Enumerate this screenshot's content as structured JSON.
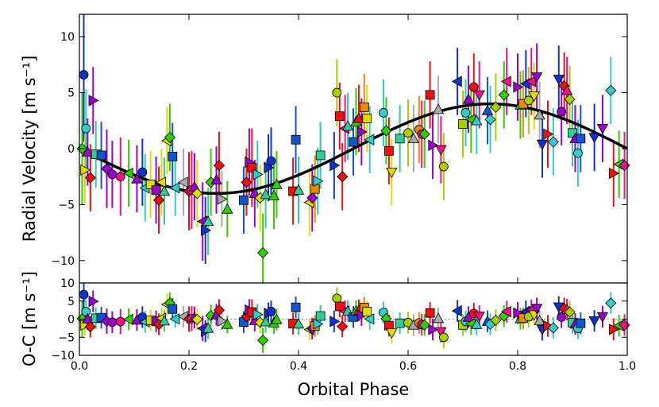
{
  "chart_data": [
    {
      "type": "scatter",
      "panel": "top",
      "title": "",
      "xlabel": "",
      "ylabel": "Radial Velocity [m s⁻¹]",
      "xlim": [
        0.0,
        1.0
      ],
      "ylim": [
        -12,
        12
      ],
      "yticks": [
        -10,
        -5,
        0,
        5,
        10
      ],
      "ytick_labels": [
        "−10",
        "−5",
        "0",
        "5",
        "10"
      ],
      "grid": false,
      "model_curve": {
        "name": "Keplerian fit",
        "type": "sinusoid",
        "amplitude": 4.0,
        "period_phase": 1.0,
        "zero_phase": 0.0,
        "form": "y = -K * sin(2*pi*phase)",
        "color": "#000000"
      },
      "points": [
        {
          "x": 0.005,
          "y": 0.0,
          "err": 5.0,
          "marker": "diamond",
          "color": "#33cc00"
        },
        {
          "x": 0.008,
          "y": 6.6,
          "err": 6.0,
          "marker": "circle",
          "color": "#1133cc"
        },
        {
          "x": 0.01,
          "y": -1.9,
          "err": 3.0,
          "marker": "right",
          "color": "#dddd00"
        },
        {
          "x": 0.012,
          "y": 1.8,
          "err": 3.5,
          "marker": "circle",
          "color": "#33cccc"
        },
        {
          "x": 0.015,
          "y": -0.3,
          "err": 3.0,
          "marker": "triangle",
          "color": "#9900cc"
        },
        {
          "x": 0.02,
          "y": -2.6,
          "err": 3.0,
          "marker": "diamond",
          "color": "#ee1111"
        },
        {
          "x": 0.025,
          "y": 4.3,
          "err": 3.0,
          "marker": "right",
          "color": "#9900cc"
        },
        {
          "x": 0.03,
          "y": -0.5,
          "err": 3.0,
          "marker": "square",
          "color": "#33cc99"
        },
        {
          "x": 0.04,
          "y": -0.6,
          "err": 3.0,
          "marker": "square",
          "color": "#1155cc"
        },
        {
          "x": 0.05,
          "y": -1.8,
          "err": 3.5,
          "marker": "diamond",
          "color": "#9900cc"
        },
        {
          "x": 0.06,
          "y": -2.3,
          "err": 3.0,
          "marker": "circle",
          "color": "#9900cc"
        },
        {
          "x": 0.075,
          "y": -2.5,
          "err": 3.5,
          "marker": "circle",
          "color": "#ee1188"
        },
        {
          "x": 0.09,
          "y": -2.2,
          "err": 3.0,
          "marker": "left",
          "color": "#33cc00"
        },
        {
          "x": 0.105,
          "y": -2.7,
          "err": 3.0,
          "marker": "triangle",
          "color": "#9900cc"
        },
        {
          "x": 0.115,
          "y": -2.1,
          "err": 3.0,
          "marker": "circle",
          "color": "#1133cc"
        },
        {
          "x": 0.12,
          "y": -3.5,
          "err": 3.0,
          "marker": "left",
          "color": "#33cccc"
        },
        {
          "x": 0.13,
          "y": -3.2,
          "err": 3.0,
          "marker": "square",
          "color": "#dddd00"
        },
        {
          "x": 0.14,
          "y": -3.7,
          "err": 3.0,
          "marker": "square",
          "color": "#9900cc"
        },
        {
          "x": 0.145,
          "y": -4.6,
          "err": 3.0,
          "marker": "diamond",
          "color": "#ee1111"
        },
        {
          "x": 0.15,
          "y": -3.0,
          "err": 3.0,
          "marker": "left",
          "color": "#dddd00"
        },
        {
          "x": 0.155,
          "y": -3.8,
          "err": 3.0,
          "marker": "triangle",
          "color": "#33cc99"
        },
        {
          "x": 0.16,
          "y": 0.7,
          "err": 3.0,
          "marker": "left",
          "color": "#dddd00"
        },
        {
          "x": 0.165,
          "y": 1.0,
          "err": 3.0,
          "marker": "diamond",
          "color": "#33cc00"
        },
        {
          "x": 0.17,
          "y": -0.7,
          "err": 3.0,
          "marker": "square",
          "color": "#1155cc"
        },
        {
          "x": 0.175,
          "y": -3.5,
          "err": 2.5,
          "marker": "left",
          "color": "#33cccc"
        },
        {
          "x": 0.19,
          "y": -3.0,
          "err": 3.0,
          "marker": "left",
          "color": "#aaaaaa"
        },
        {
          "x": 0.2,
          "y": -3.8,
          "err": 3.5,
          "marker": "diamond",
          "color": "#ee1111"
        },
        {
          "x": 0.205,
          "y": -3.7,
          "err": 3.5,
          "marker": "circle",
          "color": "#ee1188"
        },
        {
          "x": 0.21,
          "y": -3.4,
          "err": 3.0,
          "marker": "triangle",
          "color": "#9900cc"
        },
        {
          "x": 0.215,
          "y": -4.0,
          "err": 3.0,
          "marker": "diamond",
          "color": "#dddd00"
        },
        {
          "x": 0.225,
          "y": -6.5,
          "err": 3.5,
          "marker": "left",
          "color": "#9900cc"
        },
        {
          "x": 0.23,
          "y": -7.3,
          "err": 3.0,
          "marker": "right",
          "color": "#1133cc"
        },
        {
          "x": 0.235,
          "y": -6.5,
          "err": 3.0,
          "marker": "triangle",
          "color": "#33cc99"
        },
        {
          "x": 0.24,
          "y": -3.0,
          "err": 3.0,
          "marker": "diamond",
          "color": "#33cc00"
        },
        {
          "x": 0.25,
          "y": -2.8,
          "err": 3.0,
          "marker": "triangle",
          "color": "#9900cc"
        },
        {
          "x": 0.255,
          "y": -1.5,
          "err": 3.0,
          "marker": "diamond",
          "color": "#ee1111"
        },
        {
          "x": 0.26,
          "y": -4.5,
          "err": 2.5,
          "marker": "right",
          "color": "#aaaaaa"
        },
        {
          "x": 0.27,
          "y": -5.4,
          "err": 2.5,
          "marker": "triangle",
          "color": "#33cc00"
        },
        {
          "x": 0.3,
          "y": -4.6,
          "err": 3.0,
          "marker": "square",
          "color": "#1155cc"
        },
        {
          "x": 0.305,
          "y": -3.0,
          "err": 3.0,
          "marker": "diamond",
          "color": "#ee1111"
        },
        {
          "x": 0.31,
          "y": -1.2,
          "err": 3.0,
          "marker": "right",
          "color": "#9900cc"
        },
        {
          "x": 0.315,
          "y": -1.7,
          "err": 3.5,
          "marker": "square",
          "color": "#ee1111"
        },
        {
          "x": 0.32,
          "y": -4.0,
          "err": 3.0,
          "marker": "triangle",
          "color": "#9900cc"
        },
        {
          "x": 0.325,
          "y": -2.3,
          "err": 3.0,
          "marker": "right",
          "color": "#33cccc"
        },
        {
          "x": 0.33,
          "y": -4.4,
          "err": 3.0,
          "marker": "diamond",
          "color": "#dddd00"
        },
        {
          "x": 0.335,
          "y": -9.3,
          "err": 3.5,
          "marker": "diamond",
          "color": "#33cc00"
        },
        {
          "x": 0.34,
          "y": -4.1,
          "err": 3.0,
          "marker": "triangle",
          "color": "#33cc99"
        },
        {
          "x": 0.345,
          "y": -1.7,
          "err": 3.0,
          "marker": "right",
          "color": "#1133cc"
        },
        {
          "x": 0.35,
          "y": -1.1,
          "err": 3.0,
          "marker": "circle",
          "color": "#1133cc"
        },
        {
          "x": 0.355,
          "y": -4.2,
          "err": 3.0,
          "marker": "triangle",
          "color": "#33cc00"
        },
        {
          "x": 0.36,
          "y": -3.2,
          "err": 3.0,
          "marker": "triangle",
          "color": "#33cc00"
        },
        {
          "x": 0.39,
          "y": -3.8,
          "err": 3.0,
          "marker": "square",
          "color": "#ee1111"
        },
        {
          "x": 0.395,
          "y": 0.8,
          "err": 3.0,
          "marker": "square",
          "color": "#1155cc"
        },
        {
          "x": 0.4,
          "y": -3.7,
          "err": 3.0,
          "marker": "triangle",
          "color": "#33cc99"
        },
        {
          "x": 0.42,
          "y": -4.8,
          "err": 3.0,
          "marker": "left",
          "color": "#dddd00"
        },
        {
          "x": 0.425,
          "y": -4.4,
          "err": 3.0,
          "marker": "diamond",
          "color": "#9900cc"
        },
        {
          "x": 0.43,
          "y": -3.6,
          "err": 3.0,
          "marker": "square",
          "color": "#ee8800"
        },
        {
          "x": 0.435,
          "y": -2.9,
          "err": 3.0,
          "marker": "right",
          "color": "#33cccc"
        },
        {
          "x": 0.44,
          "y": -0.6,
          "err": 3.0,
          "marker": "square",
          "color": "#33cc99"
        },
        {
          "x": 0.465,
          "y": -1.5,
          "err": 3.0,
          "marker": "right",
          "color": "#1133cc"
        },
        {
          "x": 0.47,
          "y": 5.0,
          "err": 3.0,
          "marker": "circle",
          "color": "#aacc00"
        },
        {
          "x": 0.475,
          "y": 2.9,
          "err": 3.0,
          "marker": "square",
          "color": "#ee1111"
        },
        {
          "x": 0.48,
          "y": -2.5,
          "err": 3.0,
          "marker": "diamond",
          "color": "#ee1111"
        },
        {
          "x": 0.485,
          "y": 1.8,
          "err": 3.0,
          "marker": "left",
          "color": "#ee1188"
        },
        {
          "x": 0.49,
          "y": 2.0,
          "err": 3.0,
          "marker": "triangle",
          "color": "#33cc99"
        },
        {
          "x": 0.5,
          "y": 0.6,
          "err": 3.0,
          "marker": "square",
          "color": "#1155cc"
        },
        {
          "x": 0.505,
          "y": 2.4,
          "err": 3.0,
          "marker": "triangle",
          "color": "#33cc00"
        },
        {
          "x": 0.51,
          "y": 2.7,
          "err": 3.0,
          "marker": "triangle",
          "color": "#ee1111"
        },
        {
          "x": 0.515,
          "y": 1.5,
          "err": 3.0,
          "marker": "right",
          "color": "#9900cc"
        },
        {
          "x": 0.52,
          "y": 3.7,
          "err": 3.0,
          "marker": "square",
          "color": "#ee8800"
        },
        {
          "x": 0.525,
          "y": 2.7,
          "err": 3.0,
          "marker": "square",
          "color": "#dddd00"
        },
        {
          "x": 0.53,
          "y": 0.8,
          "err": 3.0,
          "marker": "left",
          "color": "#33cccc"
        },
        {
          "x": 0.555,
          "y": 3.2,
          "err": 3.0,
          "marker": "circle",
          "color": "#33cccc"
        },
        {
          "x": 0.56,
          "y": 1.6,
          "err": 3.0,
          "marker": "diamond",
          "color": "#33cc00"
        },
        {
          "x": 0.565,
          "y": -0.2,
          "err": 3.0,
          "marker": "square",
          "color": "#ee1111"
        },
        {
          "x": 0.57,
          "y": -2.1,
          "err": 3.0,
          "marker": "down",
          "color": "#dddd00"
        },
        {
          "x": 0.585,
          "y": 0.9,
          "err": 3.0,
          "marker": "square",
          "color": "#33cc99"
        },
        {
          "x": 0.6,
          "y": 1.4,
          "err": 3.0,
          "marker": "circle",
          "color": "#aacc00"
        },
        {
          "x": 0.61,
          "y": 0.9,
          "err": 3.0,
          "marker": "triangle",
          "color": "#aaaaaa"
        },
        {
          "x": 0.62,
          "y": 1.7,
          "err": 3.0,
          "marker": "circle",
          "color": "#ee8800"
        },
        {
          "x": 0.625,
          "y": 1.3,
          "err": 3.0,
          "marker": "circle",
          "color": "#ee1188"
        },
        {
          "x": 0.63,
          "y": 1.3,
          "err": 3.0,
          "marker": "diamond",
          "color": "#33cc00"
        },
        {
          "x": 0.64,
          "y": 4.8,
          "err": 3.0,
          "marker": "square",
          "color": "#ee1111"
        },
        {
          "x": 0.645,
          "y": 0.3,
          "err": 3.0,
          "marker": "right",
          "color": "#9900cc"
        },
        {
          "x": 0.655,
          "y": 3.5,
          "err": 3.0,
          "marker": "triangle",
          "color": "#aaaaaa"
        },
        {
          "x": 0.66,
          "y": -0.1,
          "err": 3.0,
          "marker": "down",
          "color": "#ee1188"
        },
        {
          "x": 0.665,
          "y": -1.6,
          "err": 3.0,
          "marker": "circle",
          "color": "#aacc00"
        },
        {
          "x": 0.69,
          "y": 6.0,
          "err": 3.0,
          "marker": "left",
          "color": "#1133cc"
        },
        {
          "x": 0.7,
          "y": 2.2,
          "err": 3.0,
          "marker": "square",
          "color": "#aacc00"
        },
        {
          "x": 0.705,
          "y": 3.2,
          "err": 3.0,
          "marker": "circle",
          "color": "#33cccc"
        },
        {
          "x": 0.71,
          "y": 4.4,
          "err": 3.0,
          "marker": "triangle",
          "color": "#9900cc"
        },
        {
          "x": 0.715,
          "y": 2.6,
          "err": 3.0,
          "marker": "left",
          "color": "#33cc00"
        },
        {
          "x": 0.72,
          "y": 5.5,
          "err": 3.0,
          "marker": "circle",
          "color": "#ee1111"
        },
        {
          "x": 0.725,
          "y": 2.5,
          "err": 3.0,
          "marker": "triangle",
          "color": "#33cccc"
        },
        {
          "x": 0.73,
          "y": 4.8,
          "err": 3.0,
          "marker": "down",
          "color": "#ee1188"
        },
        {
          "x": 0.745,
          "y": 3.4,
          "err": 3.0,
          "marker": "triangle",
          "color": "#1155cc"
        },
        {
          "x": 0.75,
          "y": 2.6,
          "err": 3.0,
          "marker": "diamond",
          "color": "#33cccc"
        },
        {
          "x": 0.76,
          "y": 3.7,
          "err": 3.0,
          "marker": "diamond",
          "color": "#aacc00"
        },
        {
          "x": 0.775,
          "y": 4.8,
          "err": 3.0,
          "marker": "diamond",
          "color": "#33cc00"
        },
        {
          "x": 0.78,
          "y": 6.0,
          "err": 3.0,
          "marker": "left",
          "color": "#ee1188"
        },
        {
          "x": 0.8,
          "y": 5.5,
          "err": 3.0,
          "marker": "right",
          "color": "#9900cc"
        },
        {
          "x": 0.805,
          "y": 3.9,
          "err": 3.0,
          "marker": "triangle",
          "color": "#33cc00"
        },
        {
          "x": 0.81,
          "y": 4.0,
          "err": 3.0,
          "marker": "square",
          "color": "#ee8800"
        },
        {
          "x": 0.815,
          "y": 5.8,
          "err": 3.0,
          "marker": "left",
          "color": "#1133cc"
        },
        {
          "x": 0.82,
          "y": 4.3,
          "err": 3.0,
          "marker": "circle",
          "color": "#aacc00"
        },
        {
          "x": 0.825,
          "y": 6.0,
          "err": 3.0,
          "marker": "left",
          "color": "#ee1188"
        },
        {
          "x": 0.83,
          "y": 4.7,
          "err": 3.0,
          "marker": "down",
          "color": "#dddd00"
        },
        {
          "x": 0.835,
          "y": 6.4,
          "err": 3.0,
          "marker": "down",
          "color": "#9900cc"
        },
        {
          "x": 0.84,
          "y": 3.0,
          "err": 3.0,
          "marker": "triangle",
          "color": "#aaaaaa"
        },
        {
          "x": 0.845,
          "y": 0.4,
          "err": 3.0,
          "marker": "down",
          "color": "#1133cc"
        },
        {
          "x": 0.855,
          "y": 1.3,
          "err": 3.0,
          "marker": "right",
          "color": "#ee1111"
        },
        {
          "x": 0.865,
          "y": 0.6,
          "err": 3.0,
          "marker": "diamond",
          "color": "#33cccc"
        },
        {
          "x": 0.875,
          "y": 6.2,
          "err": 3.0,
          "marker": "down",
          "color": "#1133cc"
        },
        {
          "x": 0.88,
          "y": 3.3,
          "err": 3.0,
          "marker": "circle",
          "color": "#9900cc"
        },
        {
          "x": 0.885,
          "y": 5.6,
          "err": 3.0,
          "marker": "diamond",
          "color": "#ee1111"
        },
        {
          "x": 0.89,
          "y": 5.2,
          "err": 3.0,
          "marker": "triangle",
          "color": "#ee1188"
        },
        {
          "x": 0.895,
          "y": 4.4,
          "err": 3.0,
          "marker": "diamond",
          "color": "#aacc00"
        },
        {
          "x": 0.9,
          "y": 1.4,
          "err": 3.0,
          "marker": "square",
          "color": "#33cc99"
        },
        {
          "x": 0.905,
          "y": 0.9,
          "err": 3.0,
          "marker": "triangle",
          "color": "#9900cc"
        },
        {
          "x": 0.91,
          "y": -0.4,
          "err": 3.0,
          "marker": "circle",
          "color": "#33cccc"
        },
        {
          "x": 0.915,
          "y": 0.9,
          "err": 3.0,
          "marker": "square",
          "color": "#1155cc"
        },
        {
          "x": 0.94,
          "y": 1.0,
          "err": 3.0,
          "marker": "down",
          "color": "#1133cc"
        },
        {
          "x": 0.955,
          "y": 1.8,
          "err": 3.0,
          "marker": "down",
          "color": "#9900cc"
        },
        {
          "x": 0.97,
          "y": 5.2,
          "err": 3.0,
          "marker": "diamond",
          "color": "#33cccc"
        },
        {
          "x": 0.975,
          "y": -2.2,
          "err": 3.0,
          "marker": "right",
          "color": "#ee1111"
        },
        {
          "x": 0.985,
          "y": -1.4,
          "err": 3.0,
          "marker": "left",
          "color": "#33cc00"
        },
        {
          "x": 0.995,
          "y": -1.5,
          "err": 3.0,
          "marker": "diamond",
          "color": "#ee1188"
        }
      ]
    },
    {
      "type": "scatter",
      "panel": "bottom",
      "title": "",
      "xlabel": "Orbital Phase",
      "ylabel": "O-C [m s⁻¹]",
      "xlim": [
        0.0,
        1.0
      ],
      "ylim": [
        -10,
        10
      ],
      "xticks": [
        0.0,
        0.2,
        0.4,
        0.6,
        0.8,
        1.0
      ],
      "xtick_labels": [
        "0.0",
        "0.2",
        "0.4",
        "0.6",
        "0.8",
        "1.0"
      ],
      "yticks": [
        -10,
        -5,
        0,
        5,
        10
      ],
      "ytick_labels": [
        "−10",
        "−5",
        "0",
        "5",
        "10"
      ],
      "zero_line": {
        "y": 0,
        "style": "dotted",
        "color": "#999999"
      },
      "grid": false,
      "residuals_of": "top panel points minus model curve"
    }
  ]
}
